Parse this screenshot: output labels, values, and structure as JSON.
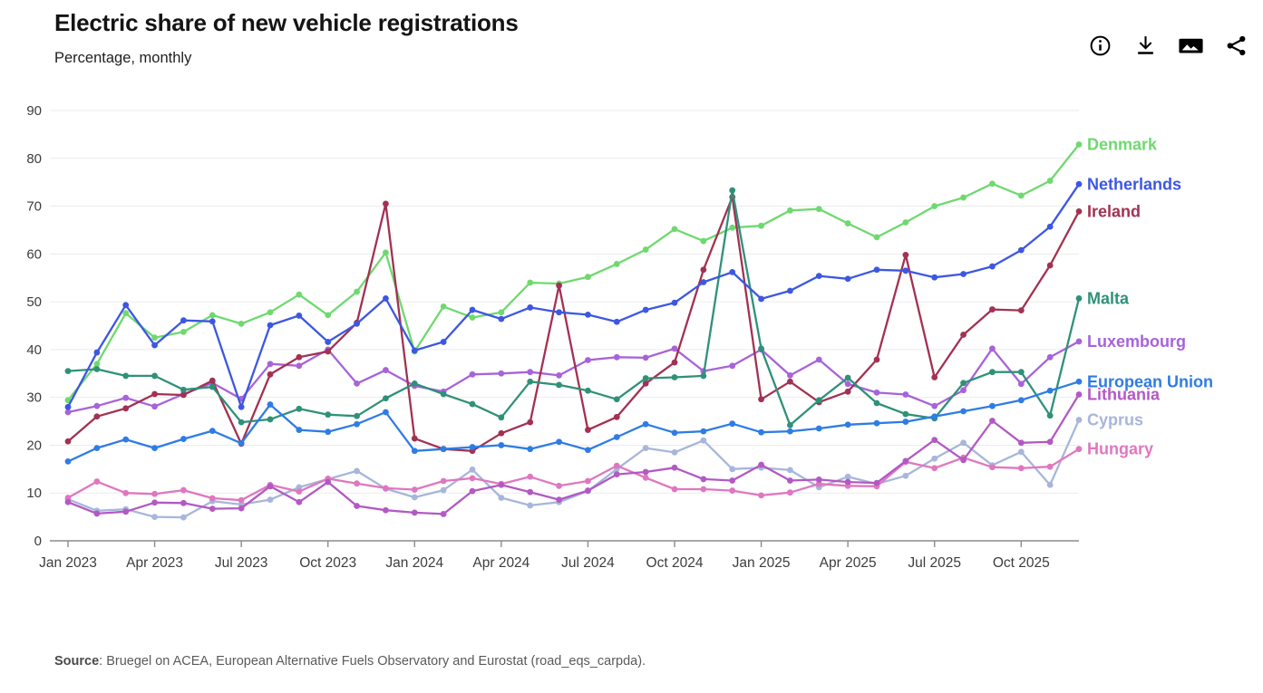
{
  "header": {
    "title": "Electric share of new vehicle registrations",
    "subtitle": "Percentage, monthly"
  },
  "toolbar": {
    "icons": [
      "info-icon",
      "download-icon",
      "image-export-icon",
      "share-icon"
    ]
  },
  "source": {
    "prefix": "Source",
    "text": ": Bruegel on ACEA, European Alternative Fuels Observatory and Eurostat (road_eqs_carpda)."
  },
  "chart_data": {
    "type": "line",
    "title": "Electric share of new vehicle registrations",
    "subtitle": "Percentage, monthly",
    "xlabel": "",
    "ylabel": "Percentage",
    "ylim": [
      0,
      90
    ],
    "y_ticks": [
      0,
      10,
      20,
      30,
      40,
      50,
      60,
      70,
      80,
      90
    ],
    "grid": true,
    "markers": true,
    "legend_position": "right-end-labels",
    "x_tick_labels": [
      "Jan 2023",
      "Apr 2023",
      "Jul 2023",
      "Oct 2023",
      "Jan 2024",
      "Apr 2024",
      "Jul 2024",
      "Oct 2024",
      "Jan 2025",
      "Apr 2025",
      "Jul 2025",
      "Oct 2025"
    ],
    "months": [
      "Jan 2023",
      "Feb 2023",
      "Mar 2023",
      "Apr 2023",
      "May 2023",
      "Jun 2023",
      "Jul 2023",
      "Aug 2023",
      "Sep 2023",
      "Oct 2023",
      "Nov 2023",
      "Dec 2023",
      "Jan 2024",
      "Feb 2024",
      "Mar 2024",
      "Apr 2024",
      "May 2024",
      "Jun 2024",
      "Jul 2024",
      "Aug 2024",
      "Sep 2024",
      "Oct 2024",
      "Nov 2024",
      "Dec 2024",
      "Jan 2025",
      "Feb 2025",
      "Mar 2025",
      "Apr 2025",
      "May 2025",
      "Jun 2025",
      "Jul 2025",
      "Aug 2025",
      "Sep 2025",
      "Oct 2025",
      "Nov 2025",
      "Dec 2025"
    ],
    "series": [
      {
        "name": "Denmark",
        "color": "#6fd96f",
        "values": [
          29.4,
          37.0,
          47.6,
          42.5,
          43.7,
          47.2,
          45.4,
          47.8,
          51.5,
          47.2,
          52.1,
          60.3,
          39.6,
          49.0,
          46.7,
          47.8,
          54.0,
          53.8,
          55.2,
          57.9,
          60.9,
          65.2,
          62.7,
          65.5,
          65.9,
          69.1,
          69.4,
          66.4,
          63.5,
          66.6,
          70.0,
          71.8,
          74.7,
          72.2,
          75.3,
          82.9
        ]
      },
      {
        "name": "Luxembourg",
        "color": "#a763d9",
        "values": [
          26.9,
          28.2,
          29.9,
          28.1,
          30.7,
          33.0,
          29.7,
          37.0,
          36.6,
          40.0,
          32.9,
          35.7,
          32.4,
          31.2,
          34.8,
          35.0,
          35.3,
          34.6,
          37.8,
          38.4,
          38.3,
          40.2,
          35.5,
          36.6,
          40.0,
          34.6,
          37.9,
          32.8,
          31.0,
          30.6,
          28.2,
          31.5,
          40.2,
          32.8,
          38.4,
          41.7
        ]
      },
      {
        "name": "Cyprus",
        "color": "#a7b6da",
        "values": [
          8.7,
          6.3,
          6.6,
          5.0,
          4.9,
          8.3,
          7.6,
          8.6,
          11.2,
          12.9,
          14.6,
          10.9,
          9.1,
          10.6,
          14.9,
          9.0,
          7.4,
          8.1,
          10.4,
          15.0,
          19.4,
          18.5,
          21.0,
          15.0,
          15.3,
          14.8,
          11.2,
          13.4,
          11.9,
          13.6,
          17.2,
          20.5,
          15.8,
          18.6,
          11.7,
          25.3
        ]
      },
      {
        "name": "Hungary",
        "color": "#df77c0",
        "values": [
          9.0,
          12.4,
          10.0,
          9.8,
          10.6,
          8.9,
          8.5,
          11.7,
          10.3,
          13.0,
          12.0,
          11.0,
          10.7,
          12.5,
          13.1,
          11.9,
          13.4,
          11.5,
          12.5,
          15.7,
          13.2,
          10.8,
          10.8,
          10.5,
          9.5,
          10.1,
          11.9,
          11.5,
          11.4,
          16.5,
          15.2,
          17.4,
          15.4,
          15.2,
          15.5,
          19.2
        ]
      },
      {
        "name": "Lithuania",
        "color": "#b259c4",
        "values": [
          8.1,
          5.7,
          6.1,
          8.0,
          7.9,
          6.7,
          6.8,
          11.4,
          8.1,
          12.3,
          7.3,
          6.4,
          5.9,
          5.6,
          10.4,
          11.7,
          10.2,
          8.6,
          10.5,
          13.9,
          14.4,
          15.3,
          12.9,
          12.6,
          15.9,
          12.6,
          12.8,
          12.3,
          12.1,
          16.7,
          21.1,
          16.9,
          25.1,
          20.5,
          20.7,
          30.6
        ]
      },
      {
        "name": "Ireland",
        "color": "#a23152",
        "values": [
          20.8,
          26.0,
          27.7,
          30.7,
          30.5,
          33.5,
          20.3,
          34.8,
          38.4,
          39.6,
          45.6,
          70.5,
          21.4,
          19.2,
          18.8,
          22.5,
          24.8,
          53.4,
          23.2,
          25.9,
          32.9,
          37.3,
          56.7,
          71.9,
          29.6,
          33.3,
          29.0,
          31.2,
          37.9,
          59.8,
          34.2,
          43.1,
          48.4,
          48.2,
          57.6,
          68.9
        ]
      },
      {
        "name": "Malta",
        "color": "#2f9178",
        "values": [
          35.5,
          35.9,
          34.5,
          34.5,
          31.6,
          32.2,
          24.8,
          25.4,
          27.6,
          26.4,
          26.1,
          29.8,
          32.9,
          30.7,
          28.6,
          25.8,
          33.3,
          32.6,
          31.4,
          29.6,
          34.0,
          34.2,
          34.5,
          73.3,
          40.2,
          24.2,
          29.4,
          34.1,
          28.8,
          26.5,
          25.6,
          33.0,
          35.3,
          35.3,
          26.2,
          50.7
        ]
      },
      {
        "name": "European Union",
        "color": "#2e7ce5",
        "values": [
          16.6,
          19.4,
          21.2,
          19.4,
          21.3,
          23.0,
          20.4,
          28.5,
          23.2,
          22.8,
          24.4,
          26.9,
          18.8,
          19.2,
          19.6,
          20.0,
          19.2,
          20.7,
          19.0,
          21.7,
          24.4,
          22.6,
          22.9,
          24.5,
          22.7,
          22.9,
          23.5,
          24.3,
          24.6,
          24.9,
          26.0,
          27.1,
          28.2,
          29.4,
          31.4,
          33.3
        ]
      },
      {
        "name": "Netherlands",
        "color": "#3d57e2",
        "values": [
          28.0,
          39.4,
          49.3,
          40.9,
          46.1,
          45.9,
          28.0,
          45.1,
          47.1,
          41.6,
          45.4,
          50.7,
          39.8,
          41.6,
          48.3,
          46.4,
          48.8,
          47.8,
          47.3,
          45.8,
          48.3,
          49.8,
          54.1,
          56.2,
          50.6,
          52.3,
          55.4,
          54.8,
          56.7,
          56.5,
          55.1,
          55.8,
          57.4,
          60.8,
          65.7,
          74.6
        ]
      }
    ]
  }
}
